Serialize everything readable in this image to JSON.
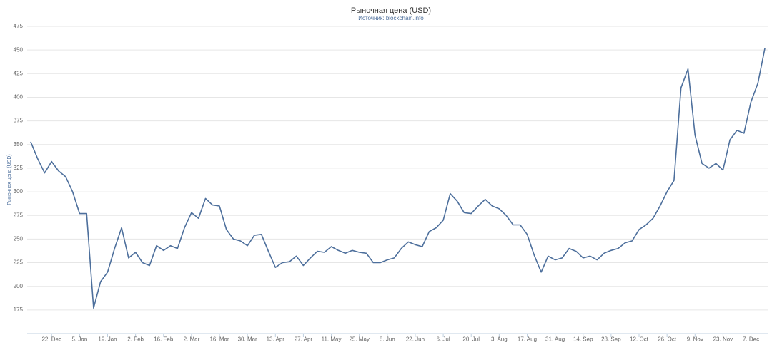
{
  "chart_data": {
    "type": "line",
    "title": "Рыночная цена (USD)",
    "subtitle": "Источник: blockchain.info",
    "y_label": "Рыночная цена (USD)",
    "categories": [
      null,
      null,
      null,
      "22. Dec",
      null,
      null,
      null,
      "5. Jan",
      null,
      null,
      null,
      "19. Jan",
      null,
      null,
      null,
      "2. Feb",
      null,
      null,
      null,
      "16. Feb",
      null,
      null,
      null,
      "2. Mar",
      null,
      null,
      null,
      "16. Mar",
      null,
      null,
      null,
      "30. Mar",
      null,
      null,
      null,
      "13. Apr",
      null,
      null,
      null,
      "27. Apr",
      null,
      null,
      null,
      "11. May",
      null,
      null,
      null,
      "25. May",
      null,
      null,
      null,
      "8. Jun",
      null,
      null,
      null,
      "22. Jun",
      null,
      null,
      null,
      "6. Jul",
      null,
      null,
      null,
      "20. Jul",
      null,
      null,
      null,
      "3. Aug",
      null,
      null,
      null,
      "17. Aug",
      null,
      null,
      null,
      "31. Aug",
      null,
      null,
      null,
      "14. Sep",
      null,
      null,
      null,
      "28. Sep",
      null,
      null,
      null,
      "12. Oct",
      null,
      null,
      null,
      "26. Oct",
      null,
      null,
      null,
      "9. Nov",
      null,
      null,
      null,
      "23. Nov",
      null,
      null,
      null,
      "7. Dec",
      null,
      null
    ],
    "series": [
      {
        "name": "Рыночная цена (USD)",
        "color": "#4d6f9c",
        "values": [
          353,
          335,
          320,
          332,
          322,
          316,
          300,
          277,
          277,
          177,
          205,
          215,
          240,
          262,
          230,
          236,
          225,
          222,
          243,
          238,
          243,
          240,
          262,
          278,
          272,
          293,
          286,
          285,
          260,
          250,
          248,
          243,
          254,
          255,
          237,
          220,
          225,
          226,
          232,
          222,
          230,
          237,
          236,
          242,
          238,
          235,
          238,
          236,
          235,
          225,
          225,
          228,
          230,
          240,
          247,
          244,
          242,
          258,
          262,
          270,
          298,
          290,
          278,
          277,
          285,
          292,
          285,
          282,
          275,
          265,
          265,
          255,
          233,
          215,
          232,
          228,
          230,
          240,
          237,
          230,
          232,
          228,
          235,
          238,
          240,
          246,
          248,
          260,
          265,
          272,
          285,
          300,
          312,
          410,
          430,
          360,
          330,
          325,
          330,
          323,
          355,
          365,
          362,
          395,
          415,
          452
        ]
      }
    ],
    "ylim": [
      150,
      475
    ],
    "yticks": [
      175,
      200,
      225,
      250,
      275,
      300,
      325,
      350,
      375,
      400,
      425,
      450,
      475
    ],
    "grid": true
  }
}
